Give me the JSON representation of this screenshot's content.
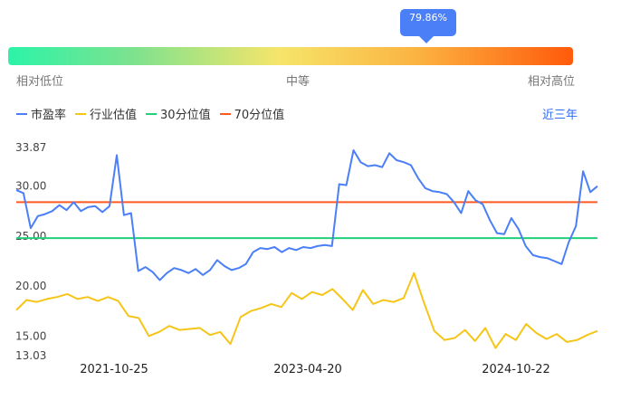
{
  "tooltip": {
    "value": "79.86%"
  },
  "gauge": {
    "low_label": "相对低位",
    "mid_label": "中等",
    "high_label": "相对高位"
  },
  "range_label": "近三年",
  "colors": {
    "pe": "#4a7ff7",
    "industry": "#f5c518",
    "p30": "#21d17a",
    "p70": "#ff5a1f",
    "accent": "#2f6bf5"
  },
  "chart_data": {
    "type": "line",
    "title": "",
    "xlabel": "",
    "ylabel": "",
    "x_ticks": [
      "2021-10-25",
      "2023-04-20",
      "2024-10-22"
    ],
    "y_ticks": [
      "33.87",
      "30.00",
      "25.00",
      "20.00",
      "15.00",
      "13.03"
    ],
    "ylim": [
      13.03,
      33.87
    ],
    "grid": false,
    "legend_position": "top-left",
    "series": [
      {
        "name": "市盈率",
        "color": "#4a7ff7",
        "values": [
          29.6,
          29.3,
          25.8,
          27.0,
          27.2,
          27.5,
          28.1,
          27.6,
          28.4,
          27.5,
          27.9,
          28.0,
          27.4,
          28.0,
          33.1,
          27.1,
          27.3,
          21.5,
          21.9,
          21.4,
          20.6,
          21.3,
          21.8,
          21.6,
          21.3,
          21.7,
          21.1,
          21.6,
          22.6,
          22.0,
          21.6,
          21.8,
          22.2,
          23.4,
          23.8,
          23.7,
          23.9,
          23.4,
          23.8,
          23.6,
          23.9,
          23.8,
          24.0,
          24.1,
          24.0,
          30.2,
          30.1,
          33.6,
          32.4,
          32.0,
          32.1,
          31.9,
          33.3,
          32.6,
          32.4,
          32.1,
          30.8,
          29.8,
          29.5,
          29.4,
          29.2,
          28.4,
          27.3,
          29.5,
          28.6,
          28.2,
          26.6,
          25.3,
          25.2,
          26.8,
          25.7,
          24.0,
          23.1,
          22.9,
          22.8,
          22.5,
          22.2,
          24.4,
          26.0,
          31.5,
          29.4,
          30.0
        ]
      },
      {
        "name": "行业估值",
        "color": "#f5c518",
        "values": [
          17.6,
          18.6,
          18.4,
          18.7,
          18.9,
          19.2,
          18.7,
          18.9,
          18.5,
          18.9,
          18.5,
          17.0,
          16.8,
          15.0,
          15.4,
          16.0,
          15.6,
          15.7,
          15.8,
          15.1,
          15.4,
          14.2,
          16.9,
          17.5,
          17.8,
          18.2,
          17.9,
          19.3,
          18.7,
          19.4,
          19.1,
          19.7,
          18.7,
          17.6,
          19.6,
          18.2,
          18.6,
          18.4,
          18.8,
          21.3,
          18.3,
          15.5,
          14.6,
          14.8,
          15.6,
          14.5,
          15.8,
          13.8,
          15.2,
          14.6,
          16.2,
          15.3,
          14.7,
          15.2,
          14.4,
          14.6,
          15.1,
          15.5
        ]
      },
      {
        "name": "30分位值",
        "color": "#21d17a",
        "values": [
          24.8
        ]
      },
      {
        "name": "70分位值",
        "color": "#ff5a1f",
        "values": [
          28.4
        ]
      }
    ]
  }
}
